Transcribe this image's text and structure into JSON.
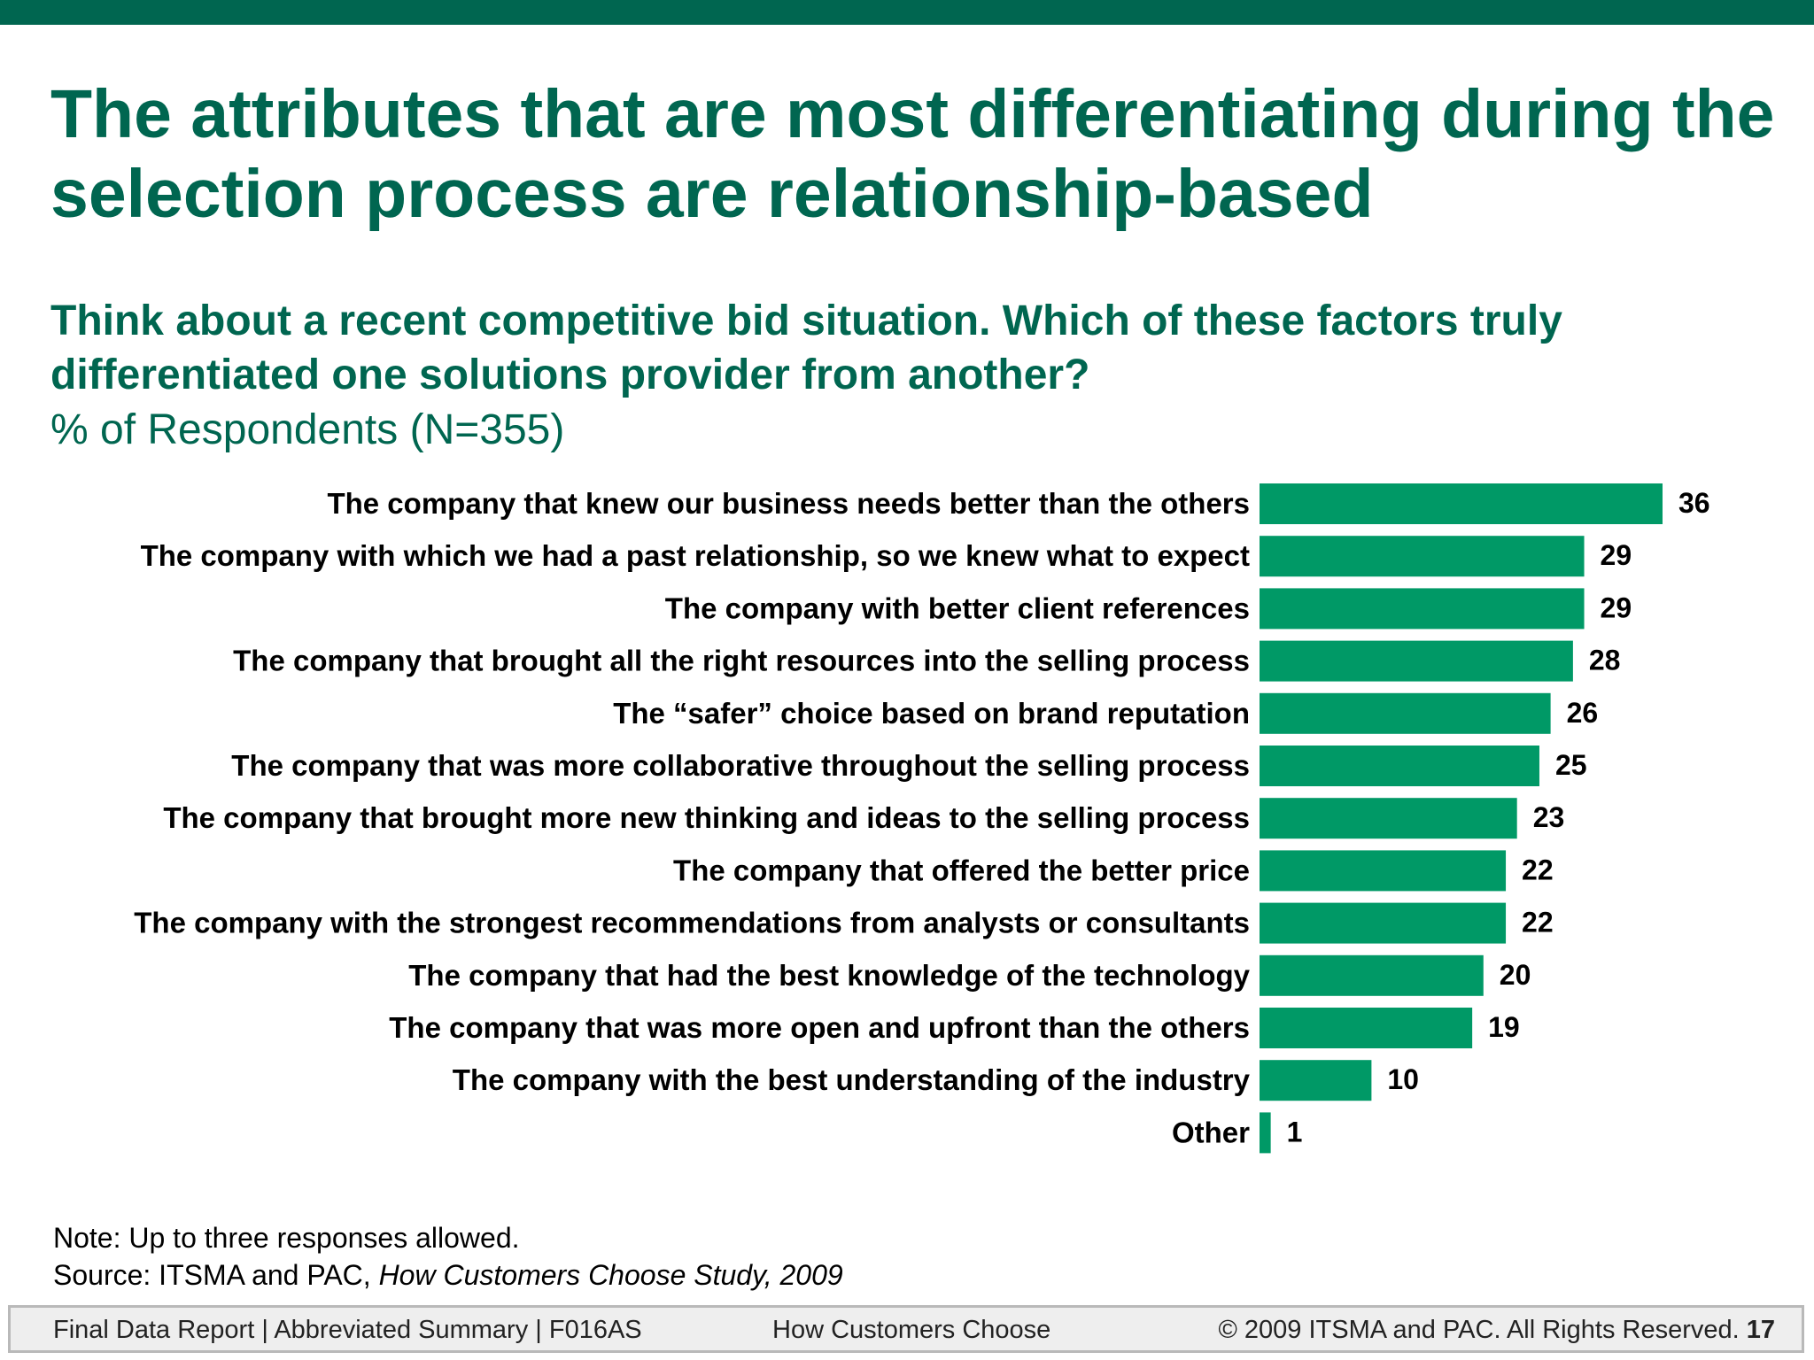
{
  "slide": {
    "title": "The attributes that are most differentiating during the selection process are relationship-based",
    "question": "Think about a recent competitive bid situation. Which of these factors truly differentiated one solutions provider from another?",
    "subtitle": "% of Respondents (N=355)",
    "note": "Note: Up to three responses allowed.",
    "source_prefix": "Source: ITSMA and PAC,",
    "source_title": "How Customers Choose Study, 2009"
  },
  "footer": {
    "left": "Final Data Report | Abbreviated Summary | F016AS",
    "center": "How Customers Choose",
    "right": "© 2009 ITSMA and PAC. All Rights Reserved.",
    "page": "17"
  },
  "colors": {
    "accent": "#006650",
    "bar": "#009966"
  },
  "chart_data": {
    "type": "bar",
    "orientation": "horizontal",
    "categories": [
      "The company that knew our business needs better than the others",
      "The company with which we had a past relationship, so we knew what to expect",
      "The company with better client references",
      "The company that brought all the right resources into the selling process",
      "The “safer” choice based on brand reputation",
      "The company that was more collaborative throughout the selling process",
      "The company that brought more new thinking and ideas to the selling process",
      "The company that offered the better price",
      "The company with the strongest recommendations from analysts or consultants",
      "The company that had the best knowledge of the technology",
      "The company that was more open and upfront than the others",
      "The company with the best understanding of the industry",
      "Other"
    ],
    "values": [
      36,
      29,
      29,
      28,
      26,
      25,
      23,
      22,
      22,
      20,
      19,
      10,
      1
    ],
    "data_labels": true,
    "grid": false,
    "legend": "none",
    "xlim": [
      0,
      36
    ]
  }
}
